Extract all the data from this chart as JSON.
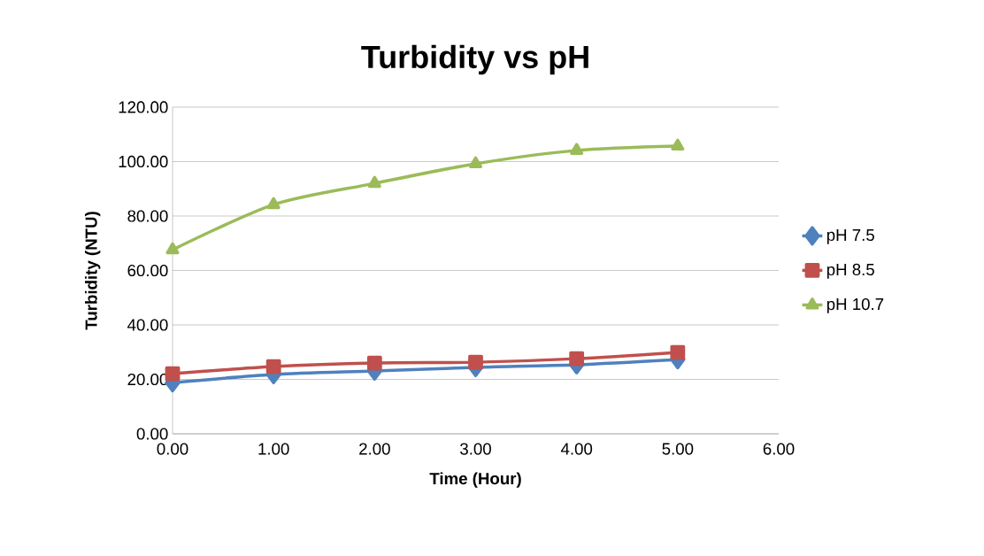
{
  "chart_data": {
    "type": "line",
    "title": "Turbidity vs pH",
    "xlabel": "Time (Hour)",
    "ylabel": "Turbidity (NTU)",
    "x": [
      0,
      1,
      2,
      3,
      4,
      5
    ],
    "series": [
      {
        "name": "pH 7.5",
        "color": "#4f81bd",
        "marker": "diamond",
        "values": [
          18.8,
          21.8,
          23.1,
          24.4,
          25.4,
          27.3
        ]
      },
      {
        "name": "pH 8.5",
        "color": "#c0504d",
        "marker": "square",
        "values": [
          22.1,
          24.7,
          26.0,
          26.3,
          27.6,
          29.9
        ]
      },
      {
        "name": "pH 10.7",
        "color": "#9bbb59",
        "marker": "triangle",
        "values": [
          67.6,
          84.2,
          92.0,
          99.2,
          104.1,
          105.7
        ]
      }
    ],
    "xlim": [
      0,
      6
    ],
    "ylim": [
      0,
      120
    ],
    "xticks": [
      {
        "value": 0,
        "label": "0.00"
      },
      {
        "value": 1,
        "label": "1.00"
      },
      {
        "value": 2,
        "label": "2.00"
      },
      {
        "value": 3,
        "label": "3.00"
      },
      {
        "value": 4,
        "label": "4.00"
      },
      {
        "value": 5,
        "label": "5.00"
      },
      {
        "value": 6,
        "label": "6.00"
      }
    ],
    "yticks": [
      {
        "value": 0,
        "label": "0.00"
      },
      {
        "value": 20,
        "label": "20.00"
      },
      {
        "value": 40,
        "label": "40.00"
      },
      {
        "value": 60,
        "label": "60.00"
      },
      {
        "value": 80,
        "label": "80.00"
      },
      {
        "value": 100,
        "label": "100.00"
      },
      {
        "value": 120,
        "label": "120.00"
      }
    ],
    "grid": "y",
    "legend": "right"
  }
}
